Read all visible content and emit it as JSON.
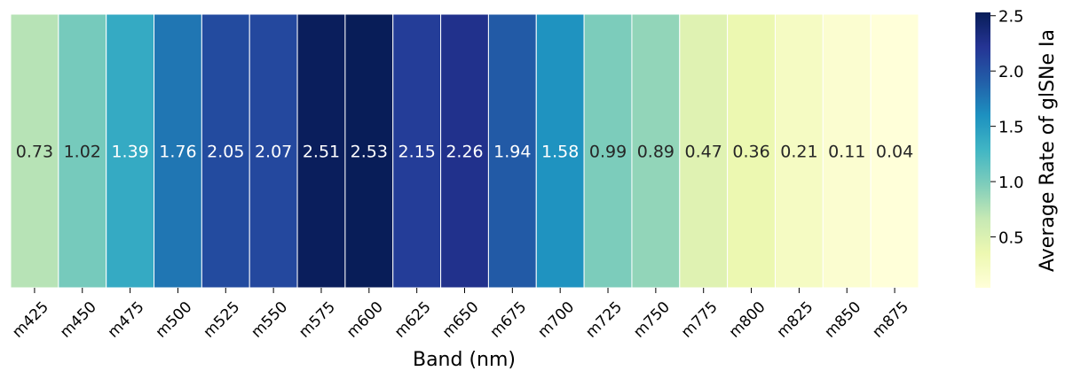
{
  "chart_data": {
    "type": "heatmap",
    "title": "",
    "xlabel": "Band (nm)",
    "ylabel": "",
    "categories": [
      "m425",
      "m450",
      "m475",
      "m500",
      "m525",
      "m550",
      "m575",
      "m600",
      "m625",
      "m650",
      "m675",
      "m700",
      "m725",
      "m750",
      "m775",
      "m800",
      "m825",
      "m850",
      "m875"
    ],
    "values": [
      0.73,
      1.02,
      1.39,
      1.76,
      2.05,
      2.07,
      2.51,
      2.53,
      2.15,
      2.26,
      1.94,
      1.58,
      0.99,
      0.89,
      0.47,
      0.36,
      0.21,
      0.11,
      0.04
    ],
    "value_labels": [
      "0.73",
      "1.02",
      "1.39",
      "1.76",
      "2.05",
      "2.07",
      "2.51",
      "2.53",
      "2.15",
      "2.26",
      "1.94",
      "1.58",
      "0.99",
      "0.89",
      "0.47",
      "0.36",
      "0.21",
      "0.11",
      "0.04"
    ],
    "colorbar": {
      "label": "Average Rate of glSNe Ia",
      "range": [
        0.04,
        2.53
      ],
      "ticks": [
        0.5,
        1.0,
        1.5,
        2.0,
        2.5
      ],
      "tick_labels": [
        "0.5",
        "1.0",
        "1.5",
        "2.0",
        "2.5"
      ],
      "colormap": "YlGnBu"
    },
    "grid": false,
    "legend": "none"
  }
}
